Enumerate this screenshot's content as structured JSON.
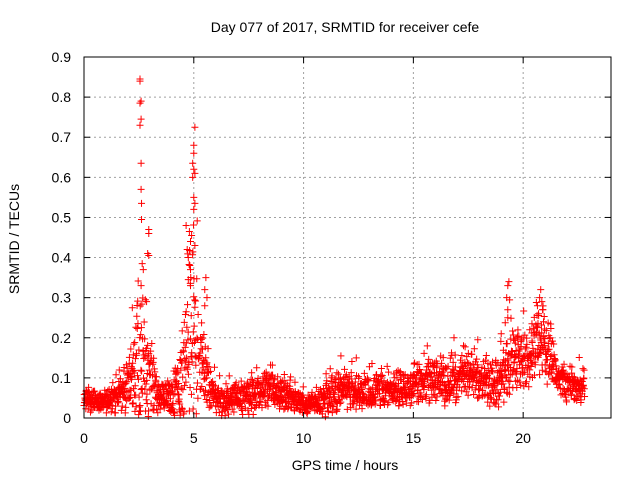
{
  "chart_data": {
    "type": "scatter",
    "title": "Day 077 of 2017, SRMTID for receiver cefe",
    "xlabel": "GPS time / hours",
    "ylabel": "SRMTID / TECUs",
    "xlim": [
      0,
      24
    ],
    "ylim": [
      0,
      0.9
    ],
    "xticks": [
      0,
      5,
      10,
      15,
      20
    ],
    "xtick_labels": [
      "0",
      "5",
      "10",
      "15",
      "20"
    ],
    "yticks": [
      0,
      0.1,
      0.2,
      0.3,
      0.4,
      0.5,
      0.6,
      0.7,
      0.8,
      0.9
    ],
    "ytick_labels": [
      "0",
      "0.1",
      "0.2",
      "0.3",
      "0.4",
      "0.5",
      "0.6",
      "0.7",
      "0.8",
      "0.9"
    ],
    "grid": true,
    "marker": "+",
    "color": "#ff0000",
    "series": [
      {
        "name": "SRMTID",
        "envelope": {
          "description": "approximate median level and upper spread of the dense point cloud, by hour",
          "hours": [
            0,
            0.5,
            1,
            1.5,
            2,
            2.3,
            2.5,
            2.7,
            3,
            3.3,
            3.6,
            4,
            4.3,
            4.6,
            4.8,
            5,
            5.2,
            5.5,
            6,
            6.5,
            7,
            7.5,
            8,
            8.5,
            9,
            9.5,
            10,
            10.5,
            11,
            11.5,
            12,
            12.5,
            13,
            13.5,
            14,
            14.5,
            15,
            15.5,
            16,
            16.5,
            17,
            17.5,
            18,
            18.5,
            19,
            19.3,
            19.6,
            20,
            20.3,
            20.6,
            20.9,
            21.2,
            21.5,
            22,
            22.5,
            22.8
          ],
          "median": [
            0.05,
            0.04,
            0.04,
            0.05,
            0.07,
            0.1,
            0.15,
            0.12,
            0.1,
            0.06,
            0.05,
            0.06,
            0.08,
            0.15,
            0.22,
            0.2,
            0.16,
            0.12,
            0.05,
            0.04,
            0.05,
            0.05,
            0.06,
            0.07,
            0.06,
            0.05,
            0.035,
            0.04,
            0.05,
            0.06,
            0.07,
            0.06,
            0.06,
            0.07,
            0.07,
            0.07,
            0.08,
            0.09,
            0.1,
            0.08,
            0.09,
            0.11,
            0.1,
            0.08,
            0.1,
            0.13,
            0.15,
            0.14,
            0.15,
            0.18,
            0.2,
            0.16,
            0.11,
            0.09,
            0.08,
            0.08
          ],
          "spread": [
            0.04,
            0.03,
            0.03,
            0.04,
            0.08,
            0.14,
            0.3,
            0.2,
            0.12,
            0.06,
            0.04,
            0.06,
            0.1,
            0.2,
            0.28,
            0.3,
            0.18,
            0.1,
            0.04,
            0.04,
            0.04,
            0.05,
            0.05,
            0.05,
            0.05,
            0.04,
            0.03,
            0.03,
            0.05,
            0.06,
            0.05,
            0.05,
            0.05,
            0.05,
            0.05,
            0.05,
            0.06,
            0.06,
            0.06,
            0.06,
            0.06,
            0.06,
            0.06,
            0.06,
            0.08,
            0.12,
            0.09,
            0.08,
            0.09,
            0.1,
            0.12,
            0.1,
            0.07,
            0.06,
            0.05,
            0.05
          ]
        },
        "notable_points": [
          {
            "x": 2.55,
            "y": 0.845
          },
          {
            "x": 2.55,
            "y": 0.84
          },
          {
            "x": 2.6,
            "y": 0.79
          },
          {
            "x": 2.55,
            "y": 0.785
          },
          {
            "x": 2.6,
            "y": 0.745
          },
          {
            "x": 2.55,
            "y": 0.73
          },
          {
            "x": 2.6,
            "y": 0.635
          },
          {
            "x": 2.6,
            "y": 0.57
          },
          {
            "x": 2.62,
            "y": 0.535
          },
          {
            "x": 2.62,
            "y": 0.495
          },
          {
            "x": 2.95,
            "y": 0.47
          },
          {
            "x": 2.95,
            "y": 0.46
          },
          {
            "x": 2.9,
            "y": 0.41
          },
          {
            "x": 2.95,
            "y": 0.405
          },
          {
            "x": 2.65,
            "y": 0.385
          },
          {
            "x": 2.7,
            "y": 0.37
          },
          {
            "x": 2.6,
            "y": 0.33
          },
          {
            "x": 2.2,
            "y": 0.275
          },
          {
            "x": 2.85,
            "y": 0.29
          },
          {
            "x": 5.05,
            "y": 0.725
          },
          {
            "x": 5.0,
            "y": 0.68
          },
          {
            "x": 5.0,
            "y": 0.66
          },
          {
            "x": 4.95,
            "y": 0.635
          },
          {
            "x": 5.0,
            "y": 0.62
          },
          {
            "x": 4.95,
            "y": 0.6
          },
          {
            "x": 5.05,
            "y": 0.61
          },
          {
            "x": 5.0,
            "y": 0.55
          },
          {
            "x": 5.05,
            "y": 0.535
          },
          {
            "x": 5.0,
            "y": 0.52
          },
          {
            "x": 4.65,
            "y": 0.48
          },
          {
            "x": 4.8,
            "y": 0.465
          },
          {
            "x": 4.9,
            "y": 0.455
          },
          {
            "x": 4.85,
            "y": 0.44
          },
          {
            "x": 5.05,
            "y": 0.43
          },
          {
            "x": 4.7,
            "y": 0.42
          },
          {
            "x": 4.75,
            "y": 0.4
          },
          {
            "x": 4.85,
            "y": 0.37
          },
          {
            "x": 4.75,
            "y": 0.345
          },
          {
            "x": 4.85,
            "y": 0.33
          },
          {
            "x": 5.55,
            "y": 0.35
          },
          {
            "x": 5.5,
            "y": 0.32
          },
          {
            "x": 5.6,
            "y": 0.3
          },
          {
            "x": 5.5,
            "y": 0.28
          },
          {
            "x": 19.35,
            "y": 0.34
          },
          {
            "x": 19.3,
            "y": 0.33
          },
          {
            "x": 19.25,
            "y": 0.3
          },
          {
            "x": 19.3,
            "y": 0.27
          },
          {
            "x": 19.3,
            "y": 0.25
          },
          {
            "x": 19.0,
            "y": 0.21
          },
          {
            "x": 20.8,
            "y": 0.32
          },
          {
            "x": 20.75,
            "y": 0.3
          },
          {
            "x": 20.85,
            "y": 0.29
          },
          {
            "x": 20.65,
            "y": 0.28
          },
          {
            "x": 20.9,
            "y": 0.27
          },
          {
            "x": 20.7,
            "y": 0.26
          },
          {
            "x": 20.4,
            "y": 0.235
          },
          {
            "x": 20.3,
            "y": 0.22
          },
          {
            "x": 16.85,
            "y": 0.2
          },
          {
            "x": 11.7,
            "y": 0.155
          },
          {
            "x": 12.4,
            "y": 0.15
          }
        ]
      }
    ]
  }
}
